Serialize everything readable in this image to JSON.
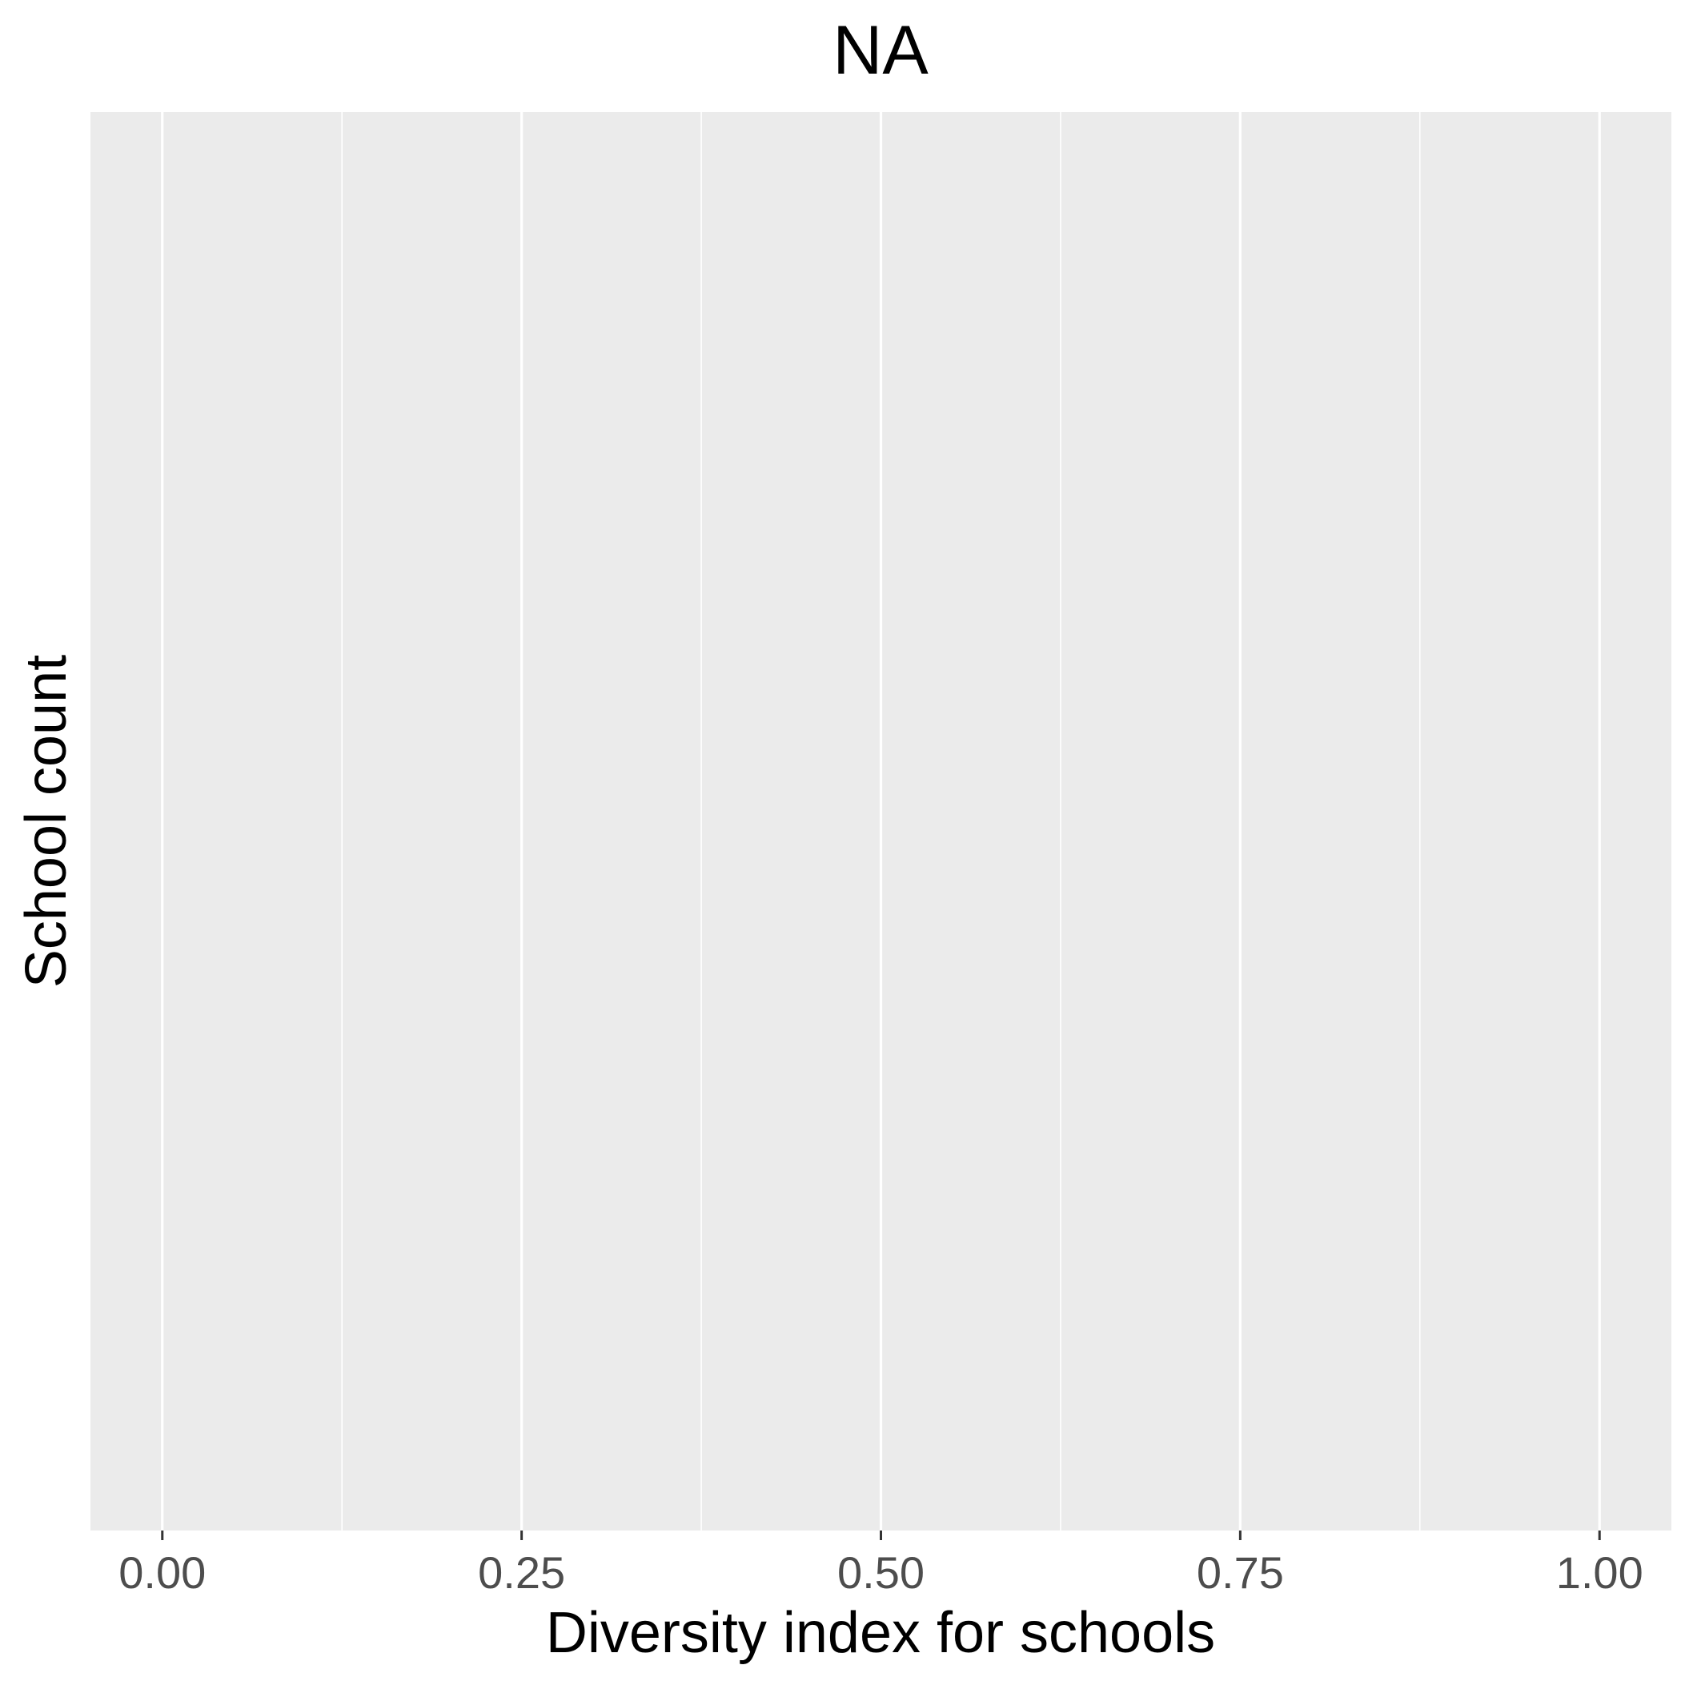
{
  "chart_data": {
    "type": "bar",
    "title": "NA",
    "xlabel": "Diversity index for schools",
    "ylabel": "School count",
    "xlim": [
      -0.05,
      1.05
    ],
    "x_ticks": [
      0.0,
      0.25,
      0.5,
      0.75,
      1.0
    ],
    "x_tick_labels": [
      "0.00",
      "0.25",
      "0.50",
      "0.75",
      "1.00"
    ],
    "x_minor_ticks": [
      0.125,
      0.375,
      0.625,
      0.875
    ],
    "y_ticks": [],
    "series": [],
    "grid": true,
    "legend": "none",
    "colors": {
      "panel_background": "#ebebeb",
      "grid_line": "#ffffff",
      "tick_label": "#4d4d4d",
      "text": "#000000"
    }
  }
}
